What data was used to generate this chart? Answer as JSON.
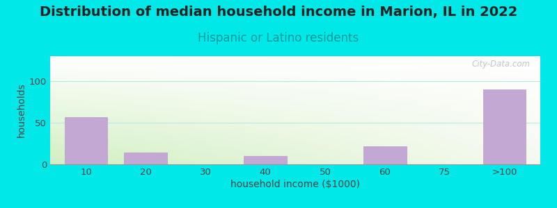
{
  "title": "Distribution of median household income in Marion, IL in 2022",
  "subtitle": "Hispanic or Latino residents",
  "xlabel": "household income ($1000)",
  "ylabel": "households",
  "categories": [
    "10",
    "20",
    "30",
    "40",
    "50",
    "60",
    "75",
    ">100"
  ],
  "values": [
    57,
    14,
    0,
    10,
    0,
    22,
    0,
    90
  ],
  "bar_color": "#c4a8d4",
  "bar_edgecolor": "#b898c8",
  "title_fontsize": 14,
  "title_color": "#222222",
  "subtitle_fontsize": 12,
  "subtitle_color": "#009999",
  "axis_label_fontsize": 10,
  "tick_fontsize": 9.5,
  "tick_color": "#444444",
  "background_outer": "#00e8e8",
  "plot_bg_top_left": "#d8f0cc",
  "plot_bg_top_right": "#f5f5f5",
  "plot_bg_bottom": "#d8f0cc",
  "yticks": [
    0,
    50,
    100
  ],
  "ylim": [
    0,
    130
  ],
  "watermark": "City-Data.com"
}
